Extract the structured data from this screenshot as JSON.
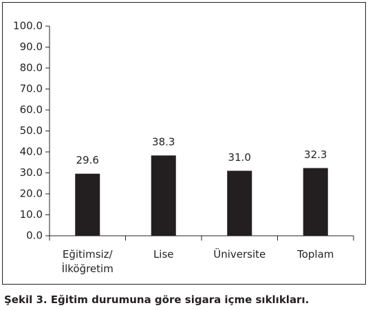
{
  "chart_data": {
    "type": "bar",
    "caption": "Şekil 3. Eğitim durumuna göre sigara içme sıklıkları.",
    "categories": [
      "Eğitimsiz/\nİlköğretim",
      "Lise",
      "Üniversite",
      "Toplam"
    ],
    "values": [
      29.6,
      38.3,
      31.0,
      32.3
    ],
    "value_labels": [
      "29.6",
      "38.3",
      "31.0",
      "32.3"
    ],
    "color": "#231f20",
    "ylim": [
      0,
      100
    ],
    "yticks": [
      {
        "value": 0,
        "label": "0.0"
      },
      {
        "value": 10,
        "label": "10.0"
      },
      {
        "value": 20,
        "label": "20.0"
      },
      {
        "value": 30,
        "label": "30.0"
      },
      {
        "value": 40,
        "label": "40.0"
      },
      {
        "value": 50,
        "label": "50.0"
      },
      {
        "value": 60,
        "label": "60.0"
      },
      {
        "value": 70,
        "label": "70.0"
      },
      {
        "value": 80,
        "label": "80.0"
      },
      {
        "value": 90,
        "label": "90.0"
      },
      {
        "value": 100,
        "label": "100.0"
      }
    ]
  }
}
